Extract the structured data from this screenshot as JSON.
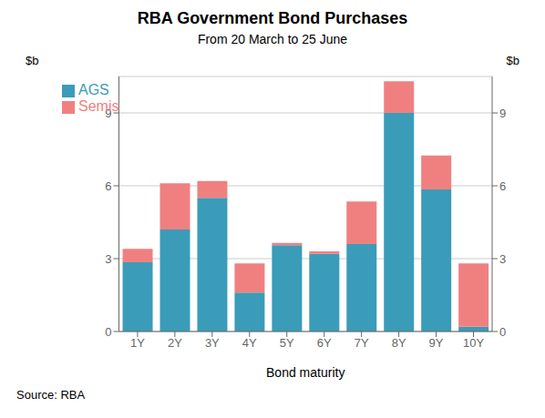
{
  "chart_data": {
    "type": "bar",
    "title": "RBA Government Bond Purchases",
    "subtitle": "From 20 March to 25 June",
    "xlabel": "Bond maturity",
    "ylabel": "$b",
    "y2label": "$b",
    "source": "Source:   RBA",
    "categories": [
      "1Y",
      "2Y",
      "3Y",
      "4Y",
      "5Y",
      "6Y",
      "7Y",
      "8Y",
      "9Y",
      "10Y"
    ],
    "series": [
      {
        "name": "AGS",
        "color": "#3a9cb8",
        "values": [
          2.85,
          4.2,
          5.5,
          1.6,
          3.55,
          3.2,
          3.6,
          9.0,
          5.85,
          0.2
        ]
      },
      {
        "name": "Semis",
        "color": "#f08080",
        "values": [
          0.55,
          1.9,
          0.7,
          1.2,
          0.1,
          0.1,
          1.75,
          1.3,
          1.4,
          2.6
        ]
      }
    ],
    "stacked": true,
    "ylim": [
      0,
      10.5
    ],
    "yticks": [
      0,
      3,
      6,
      9
    ],
    "y2lim": [
      0,
      10.5
    ],
    "y2ticks": [
      0,
      3,
      6,
      9
    ],
    "grid": true,
    "legend": "upper left"
  }
}
